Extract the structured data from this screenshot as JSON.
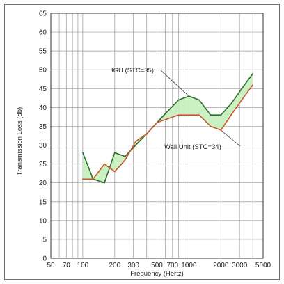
{
  "chart_data": {
    "type": "line",
    "title": "",
    "xlabel": "Frequency (Hertz)",
    "ylabel": "Transmission Loss (db)",
    "xscale": "log",
    "xlim": [
      50,
      5000
    ],
    "ylim": [
      0,
      65
    ],
    "grid": true,
    "x_ticks": [
      50,
      70,
      100,
      200,
      300,
      500,
      700,
      1000,
      2000,
      3000,
      5000
    ],
    "x_tick_labels": [
      "50",
      "70",
      "100",
      "200",
      "300",
      "500",
      "700",
      "1000",
      "2000",
      "3000",
      "5000"
    ],
    "y_ticks": [
      0,
      5,
      10,
      15,
      20,
      25,
      30,
      35,
      40,
      45,
      50,
      55,
      60,
      65
    ],
    "y_tick_labels": [
      "0",
      "5",
      "10",
      "15",
      "20",
      "25",
      "30",
      "35",
      "40",
      "45",
      "50",
      "55",
      "60",
      "65"
    ],
    "fill_between": {
      "color": "#c8efc0",
      "description_series": [
        "IGU (STC=35)",
        "Wall Unit (STC=34)"
      ]
    },
    "series": [
      {
        "name": "IGU (STC=35)",
        "color": "#2e6e2e",
        "x": [
          100,
          125,
          160,
          200,
          250,
          315,
          400,
          500,
          630,
          800,
          1000,
          1250,
          1600,
          2000,
          2500,
          3150,
          4000
        ],
        "y": [
          28,
          21,
          20,
          28,
          27,
          30,
          33,
          36,
          39,
          42,
          43,
          42,
          38,
          38,
          41,
          45,
          49
        ]
      },
      {
        "name": "Wall Unit (STC=34)",
        "color": "#c8562a",
        "x": [
          100,
          125,
          160,
          200,
          250,
          315,
          400,
          500,
          630,
          800,
          1000,
          1250,
          1600,
          2000,
          2500,
          3150,
          4000
        ],
        "y": [
          21,
          21,
          25,
          23,
          26,
          31,
          33,
          36,
          37,
          38,
          38,
          38,
          35,
          34,
          38,
          42,
          46
        ]
      }
    ],
    "annotations": [
      {
        "text": "IGU (STC=35)",
        "points_to_x": 1000,
        "points_to_y": 43
      },
      {
        "text": "Wall Unit (STC=34)",
        "points_to_x": 2000,
        "points_to_y": 34
      }
    ]
  }
}
